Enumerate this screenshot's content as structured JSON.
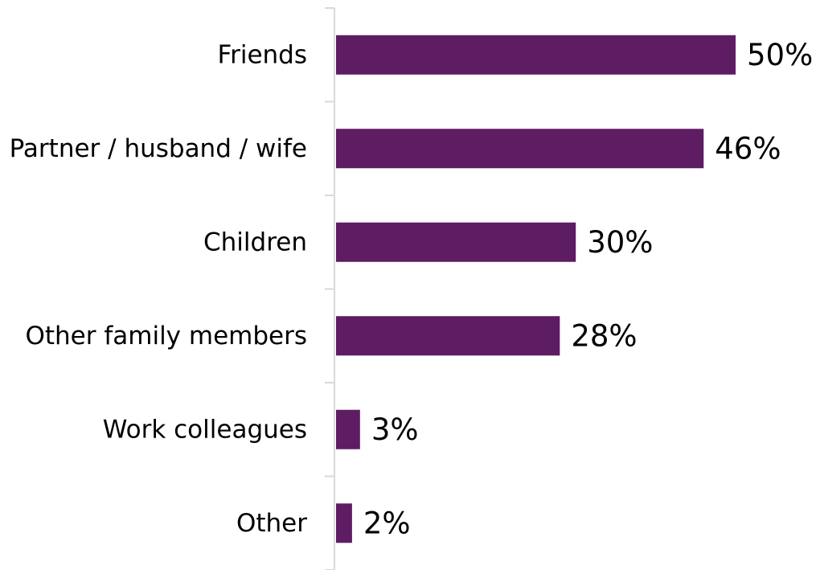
{
  "chart_data": {
    "type": "bar",
    "orientation": "horizontal",
    "categories": [
      "Friends",
      "Partner / husband / wife",
      "Children",
      "Other family members",
      "Work colleagues",
      "Other"
    ],
    "values": [
      50,
      46,
      30,
      28,
      3,
      2
    ],
    "value_labels": [
      "50%",
      "46%",
      "30%",
      "28%",
      "3%",
      "2%"
    ],
    "unit": "%",
    "title": "",
    "xlabel": "",
    "ylabel": "",
    "xlim": [
      0,
      50
    ],
    "grid": false,
    "legend": "none",
    "bar_color": "#5e1c63",
    "axis_color": "#d9d9d9"
  }
}
